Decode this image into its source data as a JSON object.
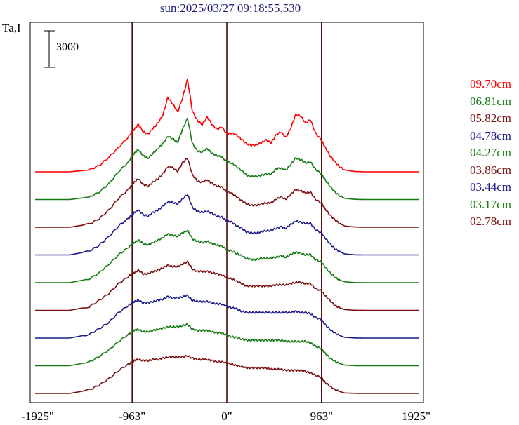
{
  "header": {
    "title": "sun:2025/03/27 09:18:55.530",
    "y_axis_label": "Ta,I",
    "scale_bar_label": "3000"
  },
  "chart_data": {
    "type": "line",
    "title": "sun:2025/03/27 09:18:55.530",
    "ylabel": "Ta,I",
    "xlabel": "",
    "xlim": [
      -2000,
      2000
    ],
    "xticks": [
      {
        "value": -1925,
        "label": "-1925\""
      },
      {
        "value": -963,
        "label": "-963\""
      },
      {
        "value": 0,
        "label": "0\""
      },
      {
        "value": 963,
        "label": "963\""
      },
      {
        "value": 1925,
        "label": "1925\""
      }
    ],
    "vertical_markers": [
      -963,
      0,
      963
    ],
    "scale_bar": 3000,
    "grid": false,
    "legend_position": "right",
    "x": [
      -1950,
      -1800,
      -1600,
      -1400,
      -1300,
      -1200,
      -1100,
      -1000,
      -963,
      -940,
      -900,
      -850,
      -800,
      -750,
      -700,
      -650,
      -600,
      -550,
      -500,
      -450,
      -400,
      -350,
      -300,
      -250,
      -200,
      -150,
      -100,
      -50,
      0,
      50,
      100,
      150,
      200,
      250,
      300,
      350,
      400,
      450,
      500,
      550,
      600,
      650,
      700,
      750,
      800,
      850,
      900,
      963,
      1000,
      1050,
      1100,
      1150,
      1200,
      1300,
      1400,
      1600,
      1800,
      1950
    ],
    "series": [
      {
        "name": "09.70cm",
        "color": "#ff0000",
        "offset": 0,
        "values": [
          0,
          0,
          0,
          150,
          500,
          1200,
          2000,
          2900,
          3300,
          3500,
          3900,
          3300,
          3100,
          3600,
          4000,
          4700,
          6100,
          5600,
          4900,
          6100,
          7600,
          5000,
          4200,
          3900,
          4500,
          3900,
          3500,
          3700,
          3100,
          3200,
          3000,
          2700,
          2300,
          2200,
          2200,
          2400,
          2600,
          2400,
          3000,
          3300,
          2800,
          3600,
          4700,
          4600,
          4000,
          4300,
          3200,
          2600,
          2000,
          1300,
          800,
          400,
          150,
          30,
          0,
          0,
          0,
          0
        ]
      },
      {
        "name": "06.81cm",
        "color": "#137a13",
        "offset": 1,
        "values": [
          0,
          0,
          0,
          200,
          600,
          1300,
          2300,
          3100,
          3600,
          3800,
          4100,
          3600,
          3400,
          3800,
          4200,
          4600,
          5200,
          5000,
          4700,
          5800,
          6700,
          4600,
          4000,
          3900,
          4200,
          3800,
          3600,
          3500,
          3100,
          3000,
          2700,
          2400,
          2000,
          1900,
          1900,
          2000,
          2100,
          2100,
          2500,
          2600,
          2400,
          2900,
          3400,
          3300,
          3000,
          3100,
          2500,
          2100,
          1600,
          1100,
          600,
          300,
          100,
          20,
          0,
          0,
          0,
          0
        ]
      },
      {
        "name": "05.82cm",
        "color": "#7a0f0f",
        "offset": 2,
        "values": [
          0,
          0,
          0,
          250,
          700,
          1400,
          2400,
          3100,
          3500,
          3700,
          4000,
          3500,
          3400,
          3700,
          4000,
          4400,
          5000,
          4900,
          4600,
          5300,
          5700,
          4300,
          3800,
          3700,
          3900,
          3600,
          3400,
          3300,
          2900,
          2800,
          2500,
          2200,
          1900,
          1800,
          1800,
          1900,
          2000,
          2000,
          2300,
          2500,
          2300,
          2700,
          3100,
          3000,
          2800,
          2900,
          2300,
          2000,
          1500,
          1000,
          600,
          300,
          100,
          20,
          0,
          0,
          0,
          0
        ]
      },
      {
        "name": "04.78cm",
        "color": "#1a1a8a",
        "offset": 3,
        "values": [
          0,
          0,
          0,
          300,
          800,
          1500,
          2400,
          3000,
          3300,
          3500,
          3700,
          3300,
          3200,
          3500,
          3700,
          4000,
          4400,
          4300,
          4200,
          4600,
          5000,
          3900,
          3600,
          3500,
          3600,
          3400,
          3200,
          3100,
          2800,
          2700,
          2400,
          2200,
          1900,
          1800,
          1800,
          1900,
          2000,
          2000,
          2200,
          2300,
          2200,
          2500,
          2800,
          2700,
          2600,
          2600,
          2100,
          1800,
          1400,
          900,
          500,
          250,
          80,
          10,
          0,
          0,
          0,
          0
        ]
      },
      {
        "name": "04.27cm",
        "color": "#137a13",
        "offset": 4,
        "values": [
          0,
          0,
          0,
          300,
          800,
          1500,
          2300,
          2900,
          3200,
          3300,
          3500,
          3200,
          3100,
          3300,
          3500,
          3700,
          4000,
          3900,
          3800,
          4100,
          4300,
          3600,
          3400,
          3300,
          3400,
          3200,
          3100,
          3000,
          2700,
          2600,
          2400,
          2200,
          2000,
          1900,
          1900,
          2000,
          2000,
          2000,
          2100,
          2200,
          2100,
          2300,
          2500,
          2400,
          2300,
          2300,
          1900,
          1700,
          1300,
          800,
          450,
          200,
          70,
          10,
          0,
          0,
          0,
          0
        ]
      },
      {
        "name": "03.86cm",
        "color": "#7a0f0f",
        "offset": 5,
        "values": [
          0,
          0,
          0,
          300,
          800,
          1400,
          2200,
          2800,
          3000,
          3100,
          3300,
          3000,
          3000,
          3200,
          3300,
          3500,
          3700,
          3600,
          3600,
          3800,
          4000,
          3400,
          3200,
          3200,
          3200,
          3100,
          3000,
          2900,
          2700,
          2600,
          2400,
          2200,
          2000,
          2000,
          2000,
          2000,
          2000,
          2000,
          2100,
          2100,
          2100,
          2200,
          2300,
          2300,
          2200,
          2200,
          1800,
          1600,
          1200,
          800,
          400,
          200,
          60,
          10,
          0,
          0,
          0,
          0
        ]
      },
      {
        "name": "03.44cm",
        "color": "#1a1a8a",
        "offset": 6,
        "values": [
          0,
          0,
          0,
          300,
          750,
          1300,
          2100,
          2700,
          2900,
          3000,
          3100,
          2900,
          2900,
          3000,
          3100,
          3200,
          3400,
          3300,
          3300,
          3400,
          3500,
          3100,
          3000,
          3000,
          3000,
          2900,
          2800,
          2800,
          2600,
          2500,
          2400,
          2200,
          2100,
          2100,
          2100,
          2100,
          2100,
          2100,
          2100,
          2100,
          2100,
          2100,
          2200,
          2100,
          2100,
          2000,
          1700,
          1500,
          1100,
          700,
          400,
          200,
          60,
          10,
          0,
          0,
          0,
          0
        ]
      },
      {
        "name": "03.17cm",
        "color": "#137a13",
        "offset": 7,
        "values": [
          0,
          0,
          0,
          300,
          750,
          1300,
          2000,
          2600,
          2800,
          2900,
          3000,
          2800,
          2800,
          2900,
          3000,
          3100,
          3200,
          3200,
          3200,
          3300,
          3400,
          3000,
          2900,
          2900,
          2900,
          2800,
          2700,
          2700,
          2500,
          2400,
          2300,
          2200,
          2100,
          2100,
          2100,
          2100,
          2100,
          2100,
          2100,
          2100,
          2000,
          2000,
          2000,
          2000,
          2000,
          1900,
          1600,
          1400,
          1000,
          650,
          350,
          180,
          50,
          10,
          0,
          0,
          0,
          0
        ]
      },
      {
        "name": "02.78cm",
        "color": "#7a0f0f",
        "offset": 8,
        "values": [
          0,
          0,
          0,
          280,
          700,
          1200,
          1900,
          2400,
          2600,
          2700,
          2800,
          2700,
          2700,
          2800,
          2800,
          2900,
          3000,
          3000,
          3000,
          3000,
          3100,
          2900,
          2800,
          2800,
          2800,
          2700,
          2600,
          2600,
          2500,
          2400,
          2300,
          2200,
          2100,
          2100,
          2100,
          2100,
          2100,
          2000,
          2000,
          2000,
          1900,
          1900,
          1900,
          1900,
          1800,
          1700,
          1500,
          1300,
          900,
          600,
          300,
          150,
          40,
          10,
          0,
          0,
          0,
          0
        ]
      }
    ]
  }
}
